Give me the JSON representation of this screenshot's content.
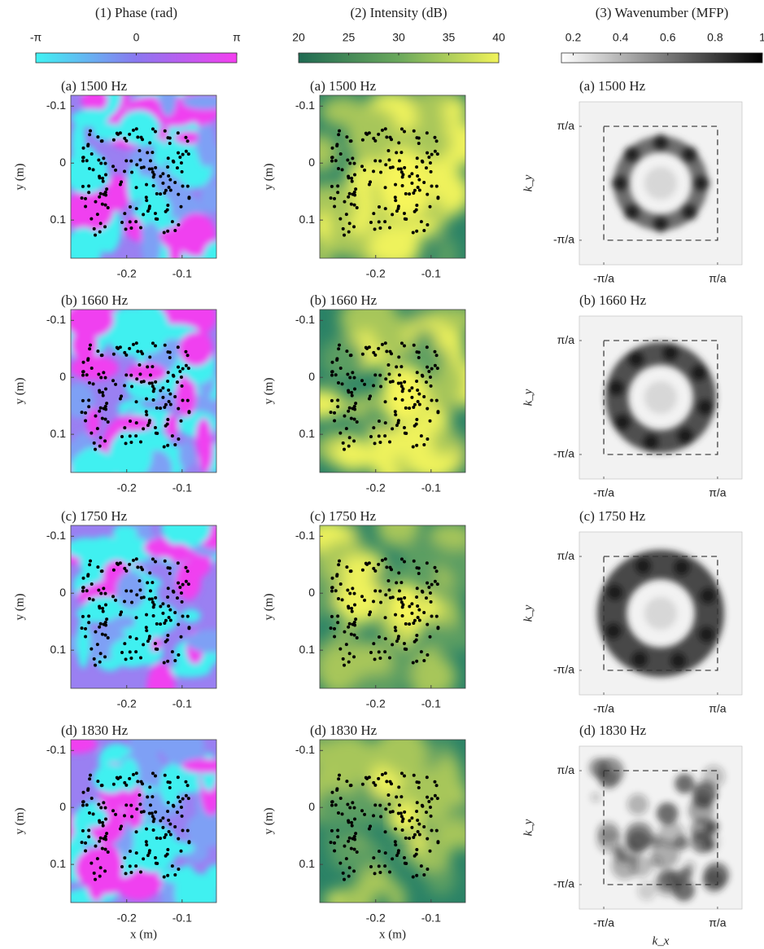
{
  "colorbars": [
    {
      "title": "(1) Phase (rad)",
      "lim": [
        -3.1416,
        3.1416
      ],
      "ticks": [
        {
          "value": -3.1416,
          "label": "-π"
        },
        0,
        {
          "value": 3.1416,
          "label": "π"
        }
      ]
    },
    {
      "title": "(2) Intensity (dB)",
      "lim": [
        20,
        40
      ],
      "ticks": [
        20,
        25,
        30,
        35,
        40
      ]
    },
    {
      "title": "(3) Wavenumber (MFP)",
      "lim": [
        0.15,
        1
      ],
      "ticks": [
        0.2,
        0.4,
        0.6,
        0.8,
        1
      ]
    }
  ],
  "rows": [
    "(a) 1500 Hz",
    "(b) 1660 Hz",
    "(c) 1750 Hz",
    "(d) 1830 Hz"
  ],
  "space_axes": {
    "xlabel": "x (m)",
    "ylabel": "y (m)",
    "xlim": [
      -0.301,
      -0.038
    ],
    "ylim": [
      -0.119,
      0.167
    ],
    "xticks": [
      -0.2,
      -0.1
    ],
    "yticks": [
      -0.1,
      0,
      0.1
    ]
  },
  "k_axes": {
    "xlabel": "k_x",
    "ylabel": "k_y",
    "lim": [
      -1.43,
      1.43
    ],
    "ticks": [
      {
        "value": -1,
        "label": "-π/a"
      },
      {
        "value": 1,
        "label": "π/a"
      }
    ]
  }
}
